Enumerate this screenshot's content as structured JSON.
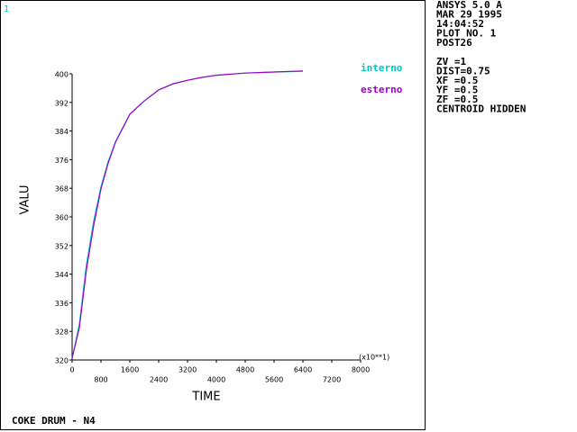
{
  "window_number": "1",
  "info_panel": {
    "header": [
      "ANSYS 5.0 A",
      "MAR 29 1995",
      "14:04:52",
      "PLOT NO.   1",
      "POST26"
    ],
    "view": [
      "ZV  =1",
      "DIST=0.75",
      "XF  =0.5",
      "YF  =0.5",
      "ZF  =0.5",
      "CENTROID HIDDEN"
    ]
  },
  "footer": "COKE DRUM - N4",
  "chart_data": {
    "type": "line",
    "xlabel": "TIME",
    "ylabel": "VALU",
    "x_multiplier": "(x10**1)",
    "x": [
      0,
      200,
      400,
      600,
      800,
      1000,
      1200,
      1600,
      2000,
      2400,
      2800,
      3200,
      3600,
      4000,
      4800,
      5600,
      6400
    ],
    "series": [
      {
        "name": "interno",
        "color": "#00c8c8",
        "values": [
          320.5,
          330,
          347,
          359,
          368.5,
          375.5,
          381,
          388.7,
          392.4,
          395.5,
          397.2,
          398.2,
          399,
          399.6,
          400.2,
          400.5,
          400.7
        ]
      },
      {
        "name": "esterno",
        "color": "#a000c8",
        "values": [
          320.5,
          329,
          345.5,
          357.7,
          367.8,
          375,
          380.8,
          388.7,
          392.4,
          395.5,
          397.2,
          398.2,
          399,
          399.6,
          400.2,
          400.5,
          400.8
        ]
      }
    ],
    "xlim": [
      0,
      8000
    ],
    "xticks": [
      0,
      800,
      1600,
      2400,
      3200,
      4000,
      4800,
      5600,
      6400,
      7200,
      8000
    ],
    "ylim": [
      320,
      400
    ],
    "yticks": [
      320,
      328,
      336,
      344,
      352,
      360,
      368,
      376,
      384,
      392,
      400
    ]
  }
}
